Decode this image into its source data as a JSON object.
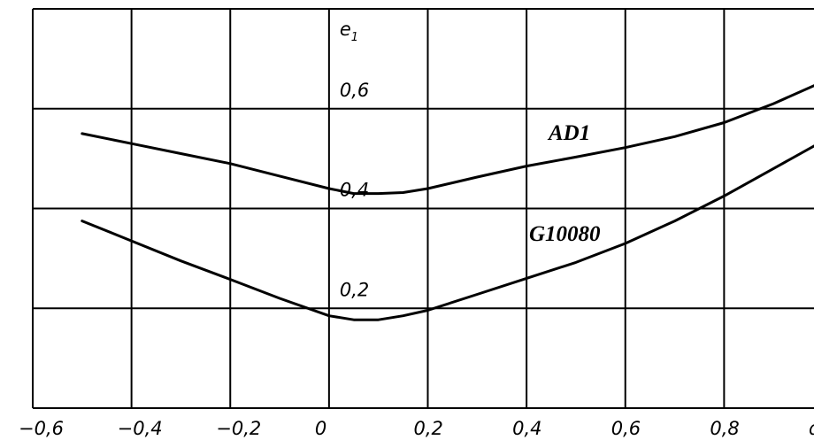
{
  "chart_data": {
    "type": "line",
    "xlim": [
      -0.6,
      1.0
    ],
    "ylim": [
      0.0,
      0.8
    ],
    "grid": true,
    "x_ticks": [
      {
        "value": -0.6,
        "label": "-0,6"
      },
      {
        "value": -0.4,
        "label": "-0,4"
      },
      {
        "value": -0.2,
        "label": "-0,2"
      },
      {
        "value": 0.0,
        "label": "0"
      },
      {
        "value": 0.2,
        "label": "0,2"
      },
      {
        "value": 0.4,
        "label": "0,4"
      },
      {
        "value": 0.6,
        "label": "0,6"
      },
      {
        "value": 0.8,
        "label": "0,8"
      },
      {
        "value": 1.0,
        "label": "d"
      }
    ],
    "y_ticks": [
      {
        "value": 0.2,
        "label": "0,2"
      },
      {
        "value": 0.4,
        "label": "0,4"
      },
      {
        "value": 0.6,
        "label": "0,6"
      },
      {
        "value": 0.8,
        "label": "e1"
      }
    ],
    "series": [
      {
        "name": "AD1",
        "x": [
          -0.5,
          -0.4,
          -0.3,
          -0.2,
          -0.1,
          0.0,
          0.05,
          0.1,
          0.15,
          0.2,
          0.3,
          0.4,
          0.5,
          0.6,
          0.7,
          0.8,
          0.9,
          1.0
        ],
        "y": [
          0.55,
          0.53,
          0.51,
          0.49,
          0.465,
          0.44,
          0.43,
          0.43,
          0.432,
          0.44,
          0.463,
          0.485,
          0.503,
          0.522,
          0.544,
          0.572,
          0.61,
          0.654
        ]
      },
      {
        "name": "G10080",
        "x": [
          -0.5,
          -0.4,
          -0.3,
          -0.2,
          -0.1,
          0.0,
          0.05,
          0.1,
          0.15,
          0.2,
          0.3,
          0.4,
          0.5,
          0.6,
          0.7,
          0.8,
          0.9,
          1.0
        ],
        "y": [
          0.375,
          0.335,
          0.295,
          0.258,
          0.22,
          0.185,
          0.177,
          0.177,
          0.185,
          0.196,
          0.228,
          0.26,
          0.292,
          0.33,
          0.375,
          0.425,
          0.48,
          0.535
        ]
      }
    ]
  }
}
